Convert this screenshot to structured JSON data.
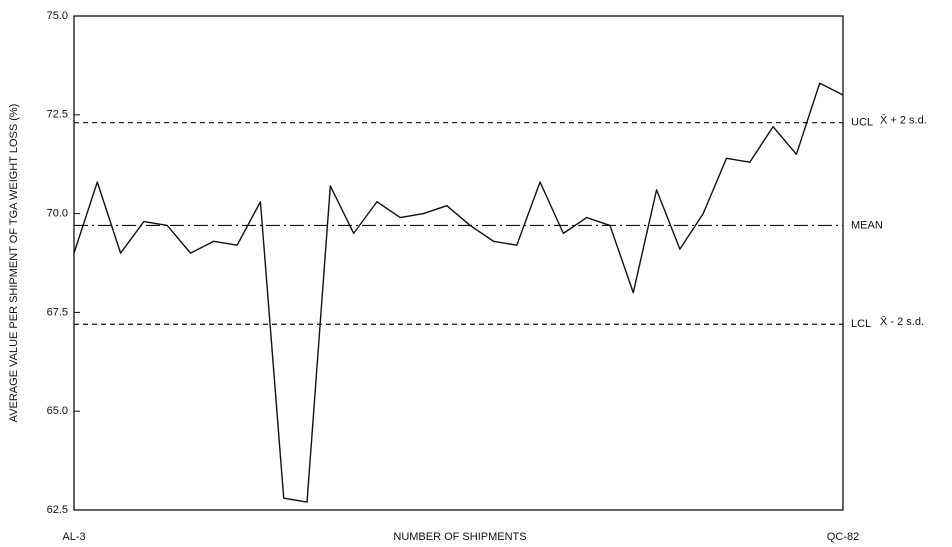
{
  "chart_data": {
    "type": "line",
    "y_label": "AVERAGE VALUE PER SHIPMENT OF TGA WEIGHT LOSS (%)",
    "x_label": "NUMBER OF SHIPMENTS",
    "categories": [
      "AL-3",
      null,
      null,
      null,
      null,
      null,
      null,
      null,
      null,
      null,
      null,
      null,
      null,
      null,
      null,
      null,
      null,
      null,
      null,
      null,
      null,
      null,
      null,
      null,
      null,
      null,
      null,
      null,
      null,
      null,
      null,
      null,
      null,
      "QC-82"
    ],
    "series": [
      {
        "color": "#111111",
        "values": [
          69.0,
          70.8,
          69.0,
          69.8,
          69.7,
          69.0,
          69.3,
          69.2,
          70.3,
          62.8,
          62.7,
          70.7,
          69.5,
          70.3,
          69.9,
          70.0,
          70.2,
          69.7,
          69.3,
          69.2,
          70.8,
          69.5,
          69.9,
          69.7,
          68.0,
          70.6,
          69.1,
          70.0,
          71.4,
          71.3,
          72.2,
          71.5,
          73.3,
          73.0
        ]
      }
    ],
    "ylim": [
      62.5,
      75
    ],
    "yticks": [
      {
        "value": 62.5,
        "label": "62.5"
      },
      {
        "value": 65,
        "label": "65.0"
      },
      67.5,
      {
        "value": 70,
        "label": "70.0"
      },
      72.5,
      {
        "value": 75,
        "label": "75.0"
      }
    ],
    "reference_lines": [
      {
        "value": 72.3,
        "label": "UCL",
        "note": "X̄ + 2 s.d.",
        "dash": "dashed"
      },
      {
        "value": 69.7,
        "label": "MEAN",
        "dash": "dashdot"
      },
      {
        "value": 67.2,
        "label": "LCL",
        "note": "X̄ - 2 s.d.",
        "dash": "dashed"
      }
    ]
  }
}
